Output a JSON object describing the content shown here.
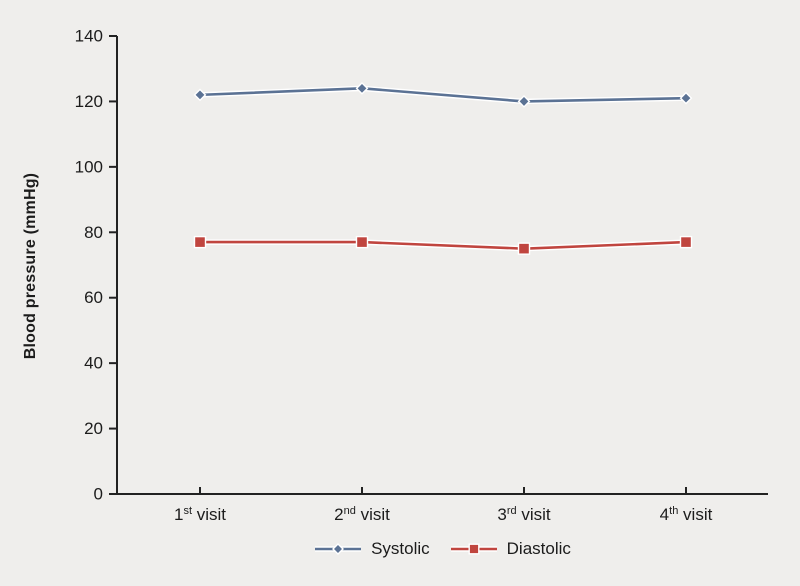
{
  "figure": {
    "background": "#efeeec",
    "axis_color": "#222222",
    "text_color": "#1c1c1c",
    "line_halo_color": "#ffffff"
  },
  "chart_data": {
    "type": "line",
    "title": "",
    "xlabel": "",
    "ylabel": "Blood pressure (mmHg)",
    "ylim": [
      0,
      140
    ],
    "ytick_step": 20,
    "ytick_labels": [
      "0",
      "20",
      "40",
      "60",
      "80",
      "100",
      "120",
      "140"
    ],
    "categories": [
      "1st visit",
      "2nd visit",
      "3rd visit",
      "4th visit"
    ],
    "category_parts": [
      {
        "num": "1",
        "sup": "st",
        "word": "visit"
      },
      {
        "num": "2",
        "sup": "nd",
        "word": "visit"
      },
      {
        "num": "3",
        "sup": "rd",
        "word": "visit"
      },
      {
        "num": "4",
        "sup": "th",
        "word": "visit"
      }
    ],
    "series": [
      {
        "name": "Systolic",
        "marker": "diamond",
        "color": "#5b7294",
        "values": [
          122,
          124,
          120,
          121
        ]
      },
      {
        "name": "Diastolic",
        "marker": "square",
        "color": "#c0453f",
        "values": [
          77,
          77,
          75,
          77
        ]
      }
    ],
    "legend_position": "bottom",
    "grid": false
  }
}
